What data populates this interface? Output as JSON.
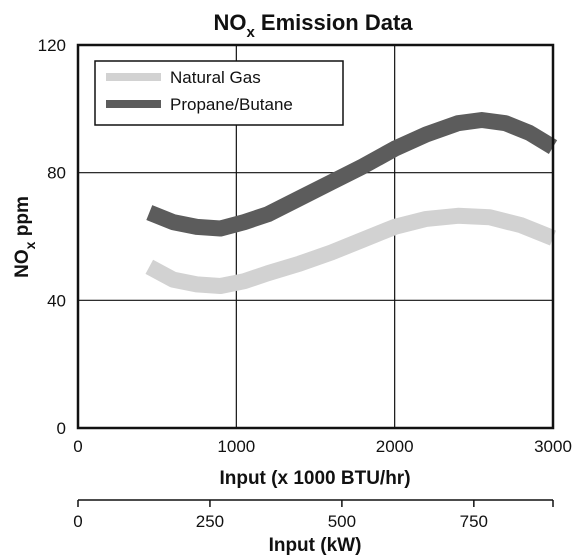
{
  "chart_data": {
    "type": "line",
    "title": {
      "main": "NO",
      "subscript": "x",
      "rest": " Emission Data"
    },
    "ylabel": {
      "main": "NO",
      "subscript": "x",
      "rest": " ppm"
    },
    "xlabel": "Input (x 1000 BTU/hr)",
    "x2label": "Input (kW)",
    "xlim": [
      0,
      3000
    ],
    "ylim": [
      0,
      120
    ],
    "x2lim": [
      0,
      900
    ],
    "xticks": [
      0,
      1000,
      2000,
      3000
    ],
    "yticks": [
      0,
      40,
      80,
      120
    ],
    "x2ticks": [
      0,
      250,
      500,
      750
    ],
    "grid": true,
    "legend_position": "top-left",
    "series": [
      {
        "name": "Natural Gas",
        "color": "#d2d2d2",
        "band_width": 5,
        "x": [
          450,
          600,
          750,
          900,
          1050,
          1200,
          1400,
          1600,
          1800,
          2000,
          2200,
          2400,
          2600,
          2800,
          3000
        ],
        "values": [
          50.5,
          46.5,
          45,
          44.5,
          46,
          48.5,
          51.5,
          55,
          59,
          63,
          65.5,
          66.5,
          66,
          63.5,
          59.5
        ]
      },
      {
        "name": "Propane/Butane",
        "color": "#5c5c5c",
        "band_width": 5,
        "x": [
          450,
          600,
          750,
          900,
          1050,
          1200,
          1400,
          1600,
          1800,
          2000,
          2200,
          2400,
          2550,
          2700,
          2850,
          3000
        ],
        "values": [
          67.5,
          64.5,
          63,
          62.5,
          64.5,
          67,
          72,
          77,
          82,
          87.5,
          92,
          95.5,
          96.5,
          95.5,
          92.5,
          88
        ]
      }
    ]
  }
}
